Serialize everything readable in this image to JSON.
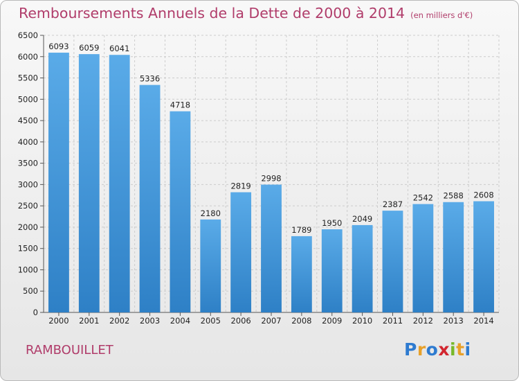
{
  "header": {
    "title": "Remboursements Annuels de la Dette de 2000 à 2014",
    "subtitle": "(en milliers d'€)"
  },
  "commune": "RAMBOUILLET",
  "logo": {
    "letters": [
      "P",
      "r",
      "o",
      "x",
      "i",
      "t",
      "i"
    ],
    "colors": [
      "#2e7bd0",
      "#e8a12a",
      "#2e7bd0",
      "#d2262f",
      "#78b82a",
      "#e8a12a",
      "#2e7bd0"
    ]
  },
  "chart_data": {
    "type": "bar",
    "categories": [
      "2000",
      "2001",
      "2002",
      "2003",
      "2004",
      "2005",
      "2006",
      "2007",
      "2008",
      "2009",
      "2010",
      "2011",
      "2012",
      "2013",
      "2014"
    ],
    "values": [
      6093,
      6059,
      6041,
      5336,
      4718,
      2180,
      2819,
      2998,
      1789,
      1950,
      2049,
      2387,
      2542,
      2588,
      2608
    ],
    "title": "Remboursements Annuels de la Dette de 2000 à 2014",
    "xlabel": "",
    "ylabel": "",
    "ylim": [
      0,
      6500
    ],
    "yticks": [
      0,
      500,
      1000,
      1500,
      2000,
      2500,
      3000,
      3500,
      4000,
      4500,
      5000,
      5500,
      6000,
      6500
    ],
    "grid": true,
    "bar_color_top": "#5aabe8",
    "bar_color_bottom": "#2e80c6"
  }
}
